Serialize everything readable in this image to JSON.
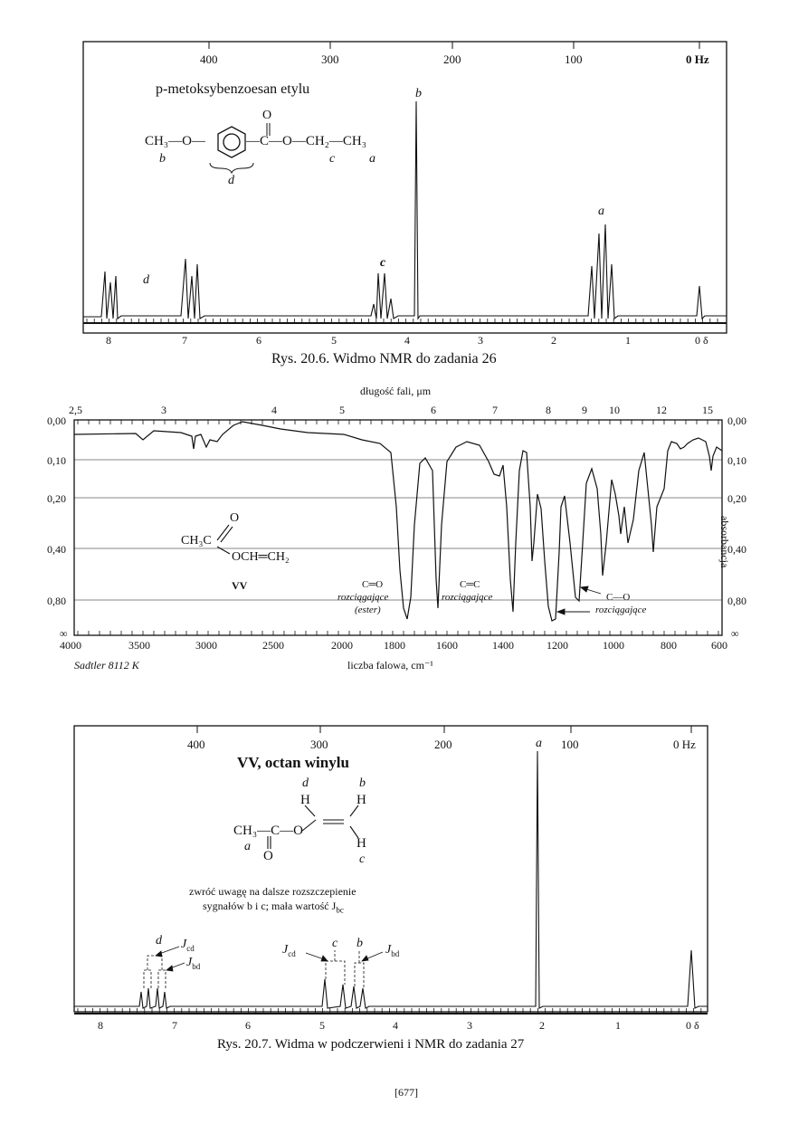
{
  "page_number": "[677]",
  "nmr1": {
    "compound": "p-metoksybenzoesan etylu",
    "hz_ticks": [
      "400",
      "300",
      "200",
      "100",
      "0 Hz"
    ],
    "ppm_ticks": [
      "8",
      "7",
      "6",
      "5",
      "4",
      "3",
      "2",
      "1",
      "0 δ"
    ],
    "caption": "Rys. 20.6. Widmo NMR do zadania 26",
    "peak_labels": [
      "a",
      "b",
      "c",
      "d"
    ],
    "struct": {
      "left": "CH₃—O—",
      "right": "—C—O—CH₂—CH₃",
      "o": "O",
      "b": "b",
      "d": "d",
      "c": "c",
      "a": "a"
    }
  },
  "ir": {
    "top_axis_title": "długość fali, μm",
    "top_ticks": [
      "2,5",
      "3",
      "4",
      "5",
      "6",
      "7",
      "8",
      "9",
      "10",
      "12",
      "15"
    ],
    "left_ticks": [
      "0,00",
      "0,10",
      "0,20",
      "0,40",
      "0,80",
      "∞"
    ],
    "right_ticks": [
      "0,00",
      "0,10",
      "0,20",
      "0,40",
      "0,80",
      "∞"
    ],
    "right_axis_title": "absorbancja",
    "bottom_ticks": [
      "4000",
      "3500",
      "3000",
      "2500",
      "2000",
      "1800",
      "1600",
      "1400",
      "1200",
      "1000",
      "800",
      "600"
    ],
    "bottom_axis_title": "liczba falowa, cm⁻¹",
    "source": "Sadtler 8112 K",
    "compound_label": "VV",
    "annotations": [
      {
        "l1": "C═O",
        "l2": "rozciągające",
        "l3": "(ester)"
      },
      {
        "l1": "C═C",
        "l2": "rozciągające",
        "l3": ""
      },
      {
        "l1": "C—O",
        "l2": "rozciągające",
        "l3": ""
      }
    ],
    "struct": {
      "ch3c": "CH₃C",
      "och": "OCH═CH₂",
      "o": "O"
    }
  },
  "nmr2": {
    "compound": "VV, octan winylu",
    "hz_ticks": [
      "400",
      "300",
      "200",
      "100",
      "0 Hz"
    ],
    "ppm_ticks": [
      "8",
      "7",
      "6",
      "5",
      "4",
      "3",
      "2",
      "1",
      "0 δ"
    ],
    "note_line1": "zwróć uwagę na dalsze rozszczepienie",
    "note_line2": "sygnałów b i c; mała wartość J",
    "note_sub": "bc",
    "caption": "Rys. 20.7. Widma w podczerwieni i NMR do zadania 27",
    "peak_labels": [
      "a",
      "b",
      "c",
      "d"
    ],
    "j_labels": [
      "J",
      "J",
      "J",
      "J"
    ],
    "j_subs": [
      "cd",
      "bd",
      "cd",
      "bd"
    ],
    "struct": {
      "ch3c": "CH₃—C—O",
      "h1": "H",
      "h2": "H",
      "h3": "H",
      "o": "O",
      "a": "a",
      "b": "b",
      "c": "c",
      "d": "d"
    }
  }
}
